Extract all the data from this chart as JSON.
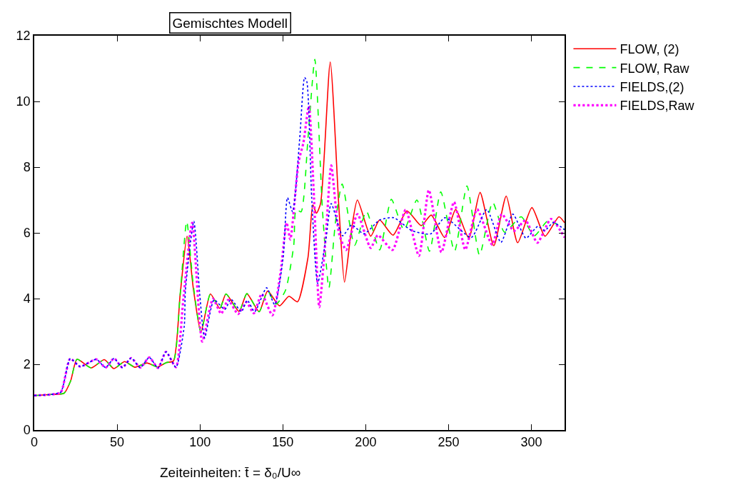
{
  "chart_data": {
    "type": "line",
    "title": "Gemischtes Modell",
    "xlabel": "Zeiteinheiten: t̄ = δ₀/U∞",
    "xlim": [
      0,
      320
    ],
    "ylim": [
      0,
      12
    ],
    "xticks": [
      0,
      50,
      100,
      150,
      200,
      250,
      300
    ],
    "yticks": [
      0,
      2,
      4,
      6,
      8,
      10,
      12
    ],
    "legend": "right",
    "marker": "none",
    "series": [
      {
        "name": "FLOW, (2)",
        "color": "#ff0000",
        "line_style": "solid",
        "x": [
          0,
          10,
          18,
          22,
          25.8,
          34.4,
          42.3,
          48,
          54.5,
          60.8,
          68,
          74.5,
          79.6,
          84,
          88,
          92.2,
          96,
          100.6,
          106.3,
          112,
          115.7,
          123.6,
          128.3,
          135.7,
          140.8,
          148,
          153.7,
          158.8,
          165.2,
          168.1,
          170.3,
          172.8,
          178.6,
          183.9,
          187.2,
          191.1,
          195,
          203,
          208.4,
          216.5,
          224.9,
          233.5,
          239.5,
          247.6,
          254.3,
          262.2,
          269,
          277.3,
          284.8,
          291.7,
          300.3,
          308.2,
          316.6,
          320
        ],
        "values": [
          1.05,
          1.08,
          1.12,
          1.5,
          2.15,
          1.89,
          2.14,
          1.87,
          2.08,
          1.91,
          2.04,
          1.92,
          2.05,
          2.1,
          4.1,
          5.9,
          4.3,
          2.98,
          4.14,
          3.7,
          4.14,
          3.61,
          4.15,
          3.6,
          4.23,
          3.78,
          4.07,
          3.9,
          5.26,
          6.85,
          6.6,
          6.9,
          11.2,
          6.71,
          4.5,
          5.98,
          7.0,
          5.9,
          6.39,
          5.93,
          6.67,
          6.22,
          6.54,
          5.86,
          6.71,
          5.84,
          7.23,
          5.61,
          7.12,
          5.7,
          6.77,
          5.9,
          6.49,
          6.31
        ]
      },
      {
        "name": "FLOW, Raw",
        "color": "#00ff00",
        "line_style": "dashed",
        "x": [
          0,
          10,
          18,
          22,
          25.8,
          34.4,
          42.3,
          48,
          54.5,
          60.8,
          68,
          74.5,
          79.6,
          84,
          88,
          92,
          96,
          100.6,
          106.3,
          112,
          115.7,
          123.6,
          128.3,
          135.7,
          140.8,
          145.9,
          151.6,
          156.6,
          158,
          161,
          165.2,
          169.3,
          173.9,
          177.8,
          181.8,
          185.8,
          193.3,
          200.4,
          208.4,
          215.5,
          223.1,
          230.9,
          238.5,
          245.3,
          253.6,
          261.1,
          268.7,
          276.6,
          283.8,
          293.8,
          301.7,
          310.3,
          320
        ],
        "values": [
          1.05,
          1.08,
          1.12,
          1.5,
          2.15,
          1.89,
          2.14,
          1.87,
          2.08,
          1.91,
          2.04,
          1.92,
          2.05,
          2.1,
          4.1,
          6.35,
          4.4,
          2.98,
          4.14,
          3.7,
          4.14,
          3.61,
          4.15,
          3.6,
          4.23,
          3.83,
          4.25,
          5.63,
          6.71,
          6.64,
          8.9,
          11.28,
          6.71,
          4.32,
          6.35,
          7.49,
          5.62,
          6.66,
          5.48,
          7.02,
          6.09,
          7.0,
          5.44,
          7.25,
          5.44,
          7.43,
          5.32,
          6.93,
          6.02,
          6.49,
          5.91,
          6.38,
          6.09
        ]
      },
      {
        "name": "FIELDS,(2)",
        "color": "#0000ff",
        "line_style": "dotted",
        "x": [
          0,
          10,
          16,
          21.7,
          27.7,
          37.4,
          43.1,
          48.1,
          53.2,
          58.5,
          64,
          69.4,
          74.7,
          79.5,
          85.5,
          90.5,
          91.2,
          96.3,
          99.9,
          102.8,
          108.5,
          115,
          118.7,
          125,
          128.5,
          133,
          140.2,
          145.1,
          150.2,
          152.8,
          155.9,
          160.2,
          163.1,
          164.5,
          167.4,
          171,
          176,
          179.2,
          186.1,
          191.5,
          199,
          208.4,
          217,
          227.8,
          239.2,
          247.8,
          263.7,
          273,
          281.6,
          288.8,
          296.7,
          303.9,
          308,
          313.2,
          320
        ],
        "values": [
          1.05,
          1.08,
          1.15,
          2.17,
          1.93,
          2.15,
          1.9,
          2.18,
          1.9,
          2.19,
          1.9,
          2.21,
          1.89,
          2.38,
          1.91,
          3.16,
          4.25,
          6.35,
          4.1,
          2.8,
          3.96,
          3.67,
          3.98,
          3.6,
          3.95,
          3.6,
          4.33,
          3.81,
          5.26,
          7.07,
          6.64,
          8.88,
          10.73,
          10.6,
          7.07,
          4.46,
          5.81,
          6.89,
          5.91,
          6.24,
          5.97,
          6.39,
          6.46,
          6.07,
          5.97,
          6.46,
          5.86,
          6.71,
          5.71,
          6.57,
          5.84,
          6.2,
          6.07,
          6.31,
          6.1
        ]
      },
      {
        "name": "FIELDS,Raw",
        "color": "#ff00ff",
        "line_style": "dotted",
        "x": [
          0,
          10,
          16,
          21.7,
          27.7,
          37.4,
          43.1,
          48.1,
          53.2,
          58.5,
          64,
          69.4,
          74.7,
          79.5,
          85.5,
          90,
          95.3,
          101.4,
          107.8,
          112.8,
          117,
          123,
          128,
          132.5,
          137.2,
          143.7,
          148.7,
          152.3,
          154.5,
          159.5,
          162.4,
          165.7,
          168.8,
          172,
          176,
          179.2,
          183.9,
          188.2,
          195,
          203,
          207.3,
          216.2,
          224.1,
          232.1,
          238.1,
          245.7,
          253.3,
          260.1,
          267.2,
          276.3,
          282.1,
          289.5,
          296.4,
          303.6,
          311.8,
          320
        ],
        "values": [
          1.05,
          1.08,
          1.15,
          2.17,
          1.93,
          2.15,
          1.9,
          2.18,
          1.9,
          2.19,
          1.9,
          2.21,
          1.89,
          2.38,
          1.91,
          4.0,
          6.31,
          2.69,
          3.99,
          3.54,
          3.96,
          3.53,
          3.89,
          3.55,
          4.14,
          3.49,
          4.83,
          6.31,
          5.8,
          8.16,
          8.74,
          9.86,
          7.07,
          3.74,
          5.98,
          8.05,
          5.98,
          5.48,
          6.57,
          5.54,
          5.93,
          5.48,
          6.7,
          5.3,
          7.3,
          5.41,
          6.94,
          5.49,
          6.72,
          5.64,
          6.57,
          6.06,
          6.38,
          5.7,
          6.42,
          5.86
        ]
      }
    ]
  }
}
